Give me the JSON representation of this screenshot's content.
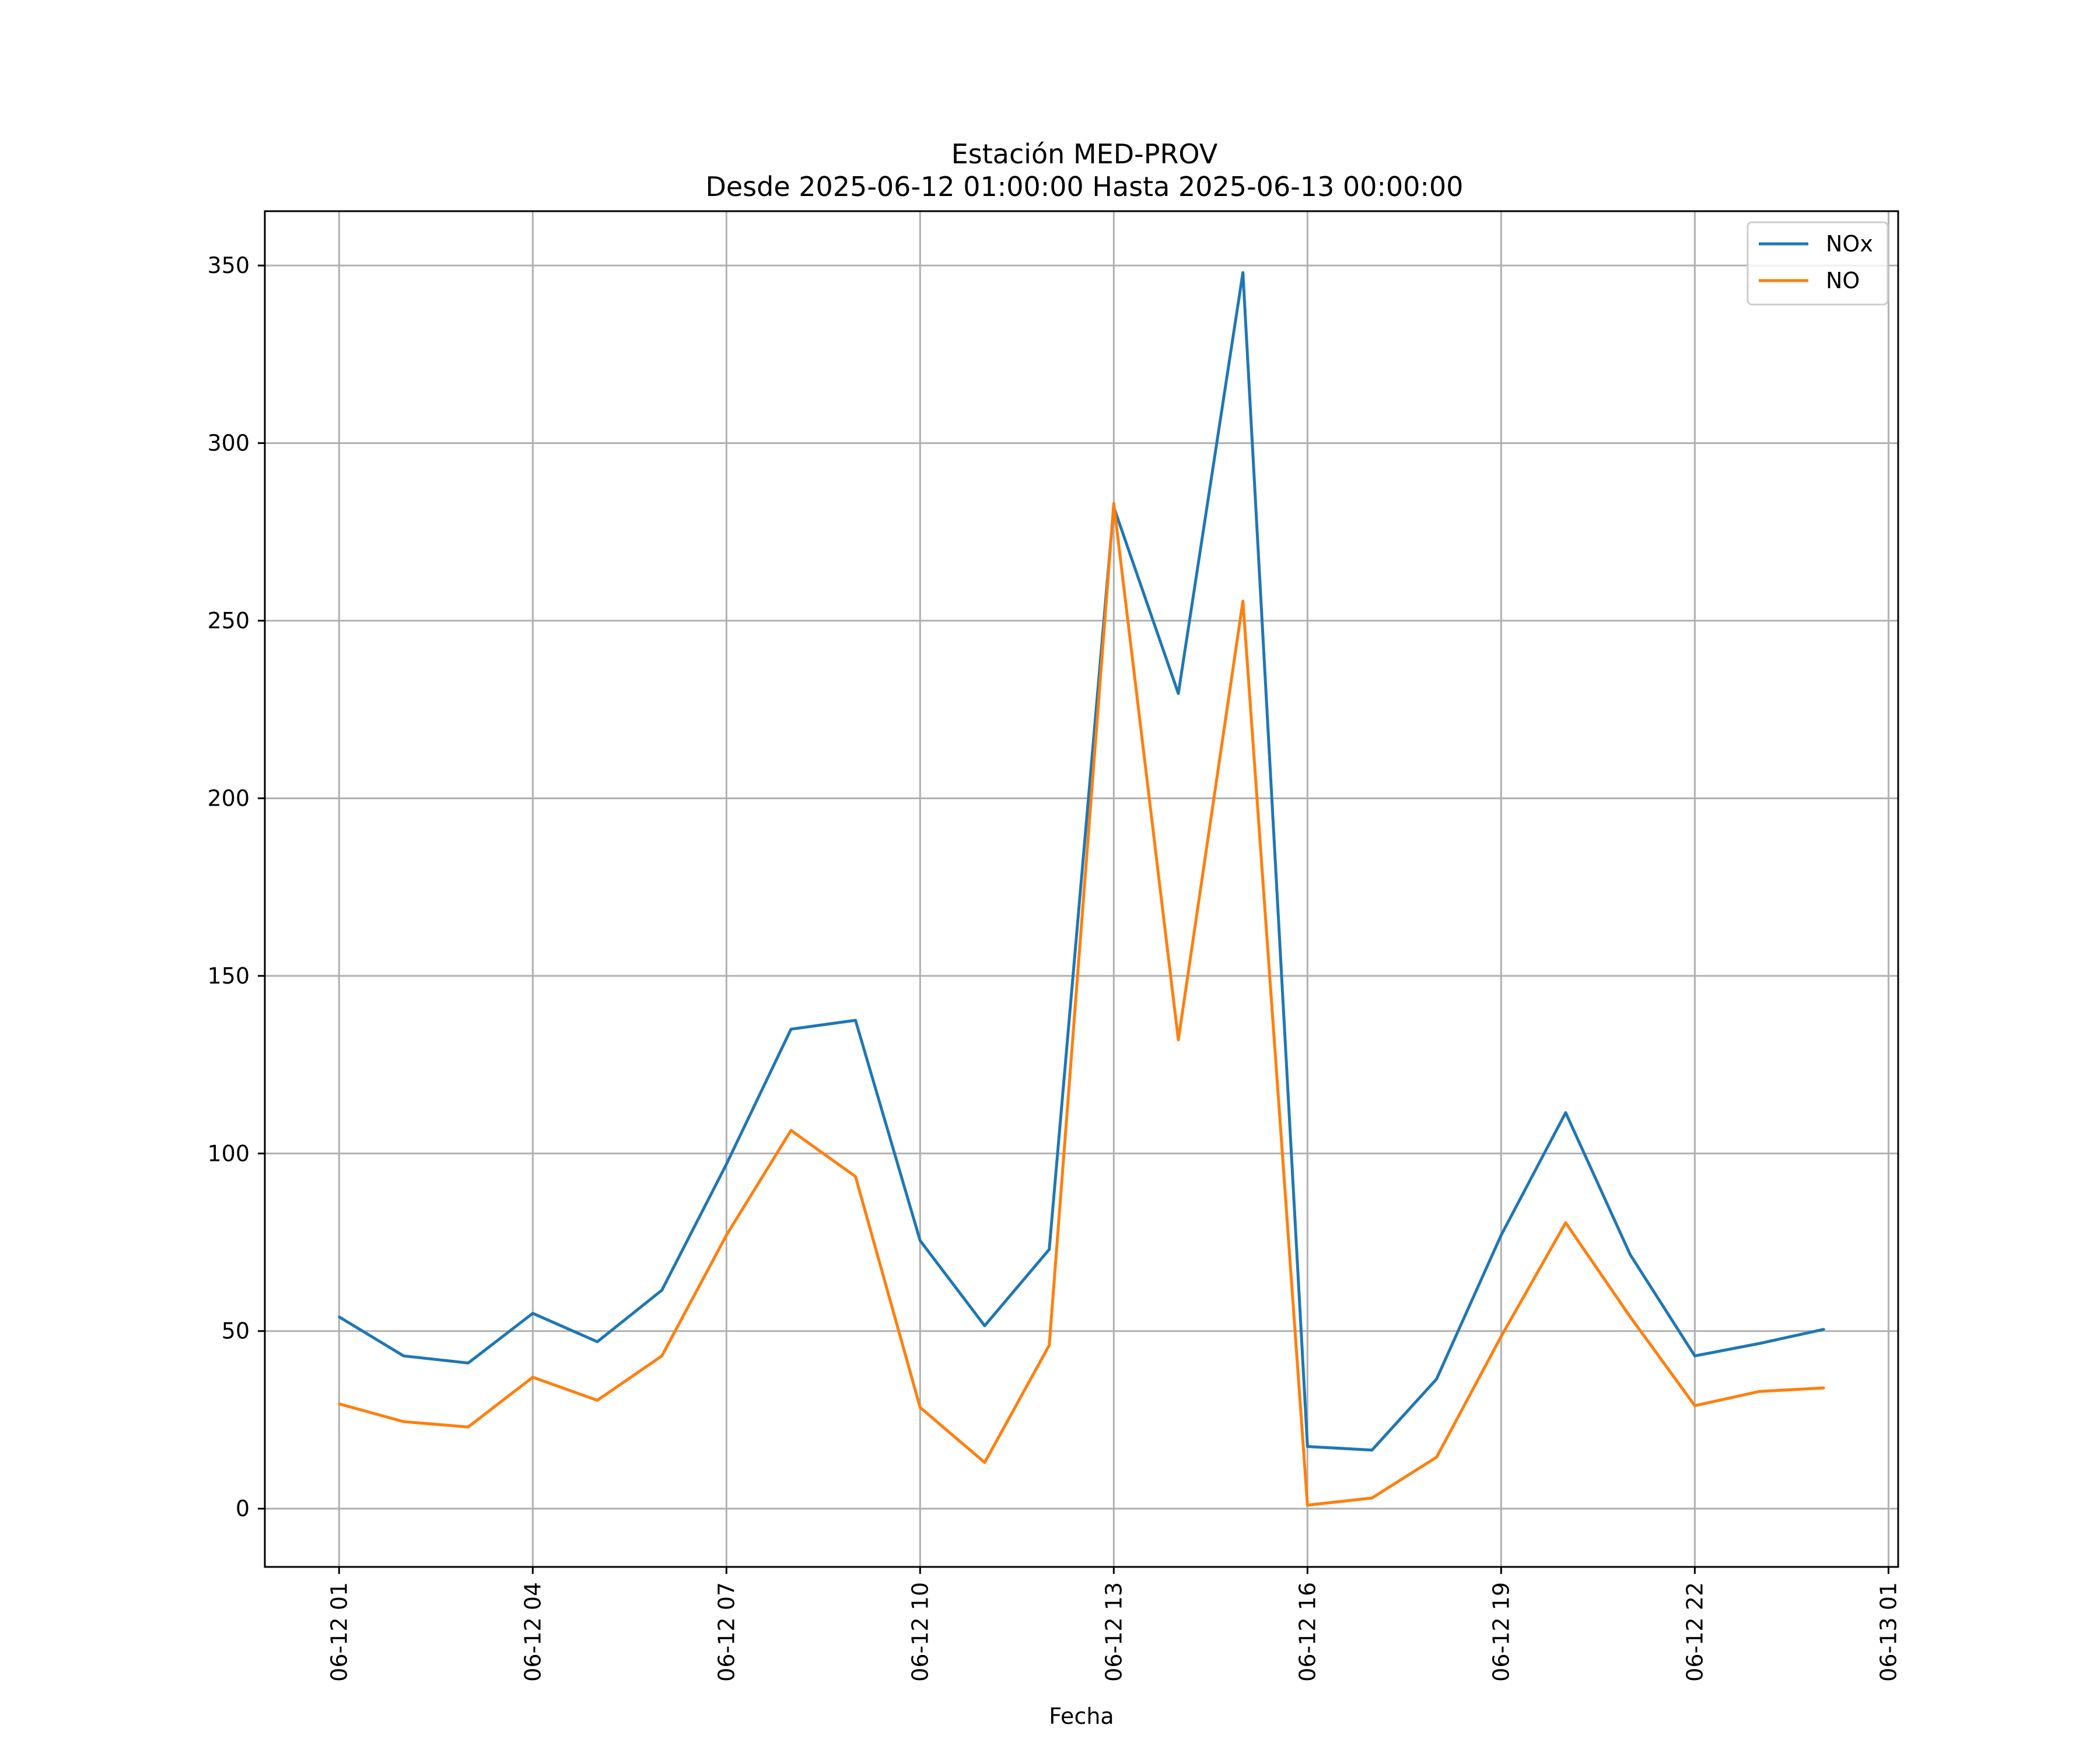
{
  "chart_data": {
    "type": "line",
    "title": "Estación MED-PROV",
    "subtitle": "Desde 2025-06-12 01:00:00 Hasta 2025-06-13 00:00:00",
    "xlabel": "Fecha",
    "ylabel": "",
    "x": [
      "2025-06-12 01:00",
      "2025-06-12 02:00",
      "2025-06-12 03:00",
      "2025-06-12 04:00",
      "2025-06-12 05:00",
      "2025-06-12 06:00",
      "2025-06-12 07:00",
      "2025-06-12 08:00",
      "2025-06-12 09:00",
      "2025-06-12 10:00",
      "2025-06-12 11:00",
      "2025-06-12 12:00",
      "2025-06-12 13:00",
      "2025-06-12 14:00",
      "2025-06-12 15:00",
      "2025-06-12 16:00",
      "2025-06-12 17:00",
      "2025-06-12 18:00",
      "2025-06-12 19:00",
      "2025-06-12 20:00",
      "2025-06-12 21:00",
      "2025-06-12 22:00",
      "2025-06-12 23:00",
      "2025-06-13 00:00"
    ],
    "series": [
      {
        "name": "NOx",
        "color": "#1f77b4",
        "values": [
          54,
          43,
          41,
          55,
          47,
          61.5,
          97,
          135,
          137.5,
          75.5,
          51.5,
          73,
          282,
          229.5,
          348,
          17.5,
          16.5,
          36.5,
          77,
          111.5,
          71.5,
          43,
          46.5,
          50.5
        ]
      },
      {
        "name": "NO",
        "color": "#ff7f0e",
        "values": [
          29.5,
          24.5,
          23,
          37,
          30.5,
          43,
          77,
          106.5,
          93.5,
          28.5,
          13,
          46,
          283,
          132,
          255.5,
          1,
          3,
          14.5,
          48.5,
          80.5,
          54,
          29,
          33,
          34
        ]
      }
    ],
    "x_tick_labels": [
      "06-12 01",
      "06-12 04",
      "06-12 07",
      "06-12 10",
      "06-12 13",
      "06-12 16",
      "06-12 19",
      "06-12 22",
      "06-13 01"
    ],
    "x_ticks": [
      "2025-06-12 01:00",
      "2025-06-12 04:00",
      "2025-06-12 07:00",
      "2025-06-12 10:00",
      "2025-06-12 13:00",
      "2025-06-12 16:00",
      "2025-06-12 19:00",
      "2025-06-12 22:00",
      "2025-06-13 01:00"
    ],
    "xlim": [
      "2025-06-11 23:51",
      "2025-06-13 01:09"
    ],
    "y_ticks": [
      0,
      50,
      100,
      150,
      200,
      250,
      300,
      350
    ],
    "ylim": [
      -16.4,
      365.3
    ],
    "grid": true,
    "legend_position": "top-right"
  }
}
